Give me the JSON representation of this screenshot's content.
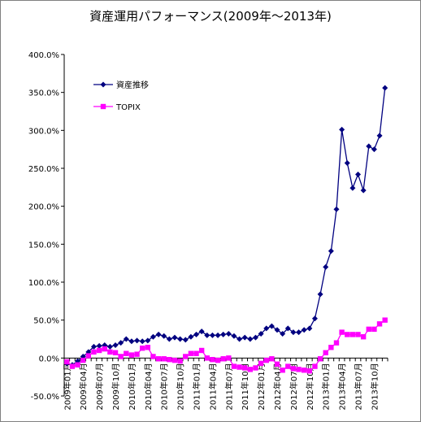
{
  "chart_data": {
    "type": "line",
    "title": "資産運用パフォーマンス(2009年〜2013年)",
    "xlabel": "",
    "ylabel": "",
    "ylim": [
      -50,
      400
    ],
    "yticks": [
      "-50.0%",
      "0.0%",
      "50.0%",
      "100.0%",
      "150.0%",
      "200.0%",
      "250.0%",
      "300.0%",
      "350.0%",
      "400.0%"
    ],
    "ytick_values": [
      -50,
      0,
      50,
      100,
      150,
      200,
      250,
      300,
      350,
      400
    ],
    "grid": false,
    "legend_position": "top-left",
    "x": [
      "2009年01月",
      "2009年02月",
      "2009年03月",
      "2009年04月",
      "2009年05月",
      "2009年06月",
      "2009年07月",
      "2009年08月",
      "2009年09月",
      "2009年10月",
      "2009年11月",
      "2009年12月",
      "2010年01月",
      "2010年02月",
      "2010年03月",
      "2010年04月",
      "2010年05月",
      "2010年06月",
      "2010年07月",
      "2010年08月",
      "2010年09月",
      "2010年10月",
      "2010年11月",
      "2010年12月",
      "2011年01月",
      "2011年02月",
      "2011年03月",
      "2011年04月",
      "2011年05月",
      "2011年06月",
      "2011年07月",
      "2011年08月",
      "2011年09月",
      "2011年10月",
      "2011年11月",
      "2011年12月",
      "2012年01月",
      "2012年02月",
      "2012年03月",
      "2012年04月",
      "2012年05月",
      "2012年06月",
      "2012年07月",
      "2012年08月",
      "2012年09月",
      "2012年10月",
      "2012年11月",
      "2012年12月",
      "2013年01月",
      "2013年02月",
      "2013年03月",
      "2013年04月",
      "2013年05月",
      "2013年06月",
      "2013年07月",
      "2013年08月",
      "2013年09月",
      "2013年10月",
      "2013年11月",
      "2013年12月"
    ],
    "xtick_labels": [
      "2009年01月",
      "2009年04月",
      "2009年07月",
      "2009年10月",
      "2010年01月",
      "2010年04月",
      "2010年07月",
      "2010年10月",
      "2011年01月",
      "2011年04月",
      "2011年07月",
      "2011年10月",
      "2012年01月",
      "2012年04月",
      "2012年07月",
      "2012年10月",
      "2013年01月",
      "2013年04月",
      "2013年07月",
      "2013年10月"
    ],
    "series": [
      {
        "name": "資産推移",
        "color": "#000080",
        "marker": "diamond",
        "values": [
          -7,
          -9,
          -4,
          2,
          8,
          15,
          16,
          17,
          15,
          17,
          20,
          25,
          22,
          23,
          22,
          23,
          28,
          31,
          29,
          25,
          27,
          25,
          24,
          28,
          31,
          35,
          30,
          30,
          30,
          31,
          32,
          29,
          25,
          27,
          25,
          27,
          32,
          39,
          42,
          37,
          32,
          39,
          34,
          34,
          37,
          39,
          52,
          84,
          120,
          141,
          196,
          301,
          257,
          224,
          242,
          221,
          279,
          275,
          293,
          356
        ]
      },
      {
        "name": "TOPIX",
        "color": "#ff00ff",
        "marker": "square",
        "values": [
          -5,
          -11,
          -9,
          -3,
          3,
          8,
          10,
          12,
          8,
          7,
          2,
          6,
          4,
          5,
          13,
          14,
          2,
          -1,
          -1,
          -2,
          -3,
          -4,
          2,
          6,
          6,
          10,
          0,
          -2,
          -3,
          -1,
          0,
          -11,
          -12,
          -13,
          -15,
          -13,
          -7,
          -3,
          -1,
          -8,
          -16,
          -11,
          -14,
          -15,
          -16,
          -17,
          -11,
          -1,
          7,
          14,
          20,
          34,
          31,
          31,
          31,
          28,
          38,
          38,
          45,
          50
        ]
      }
    ]
  }
}
